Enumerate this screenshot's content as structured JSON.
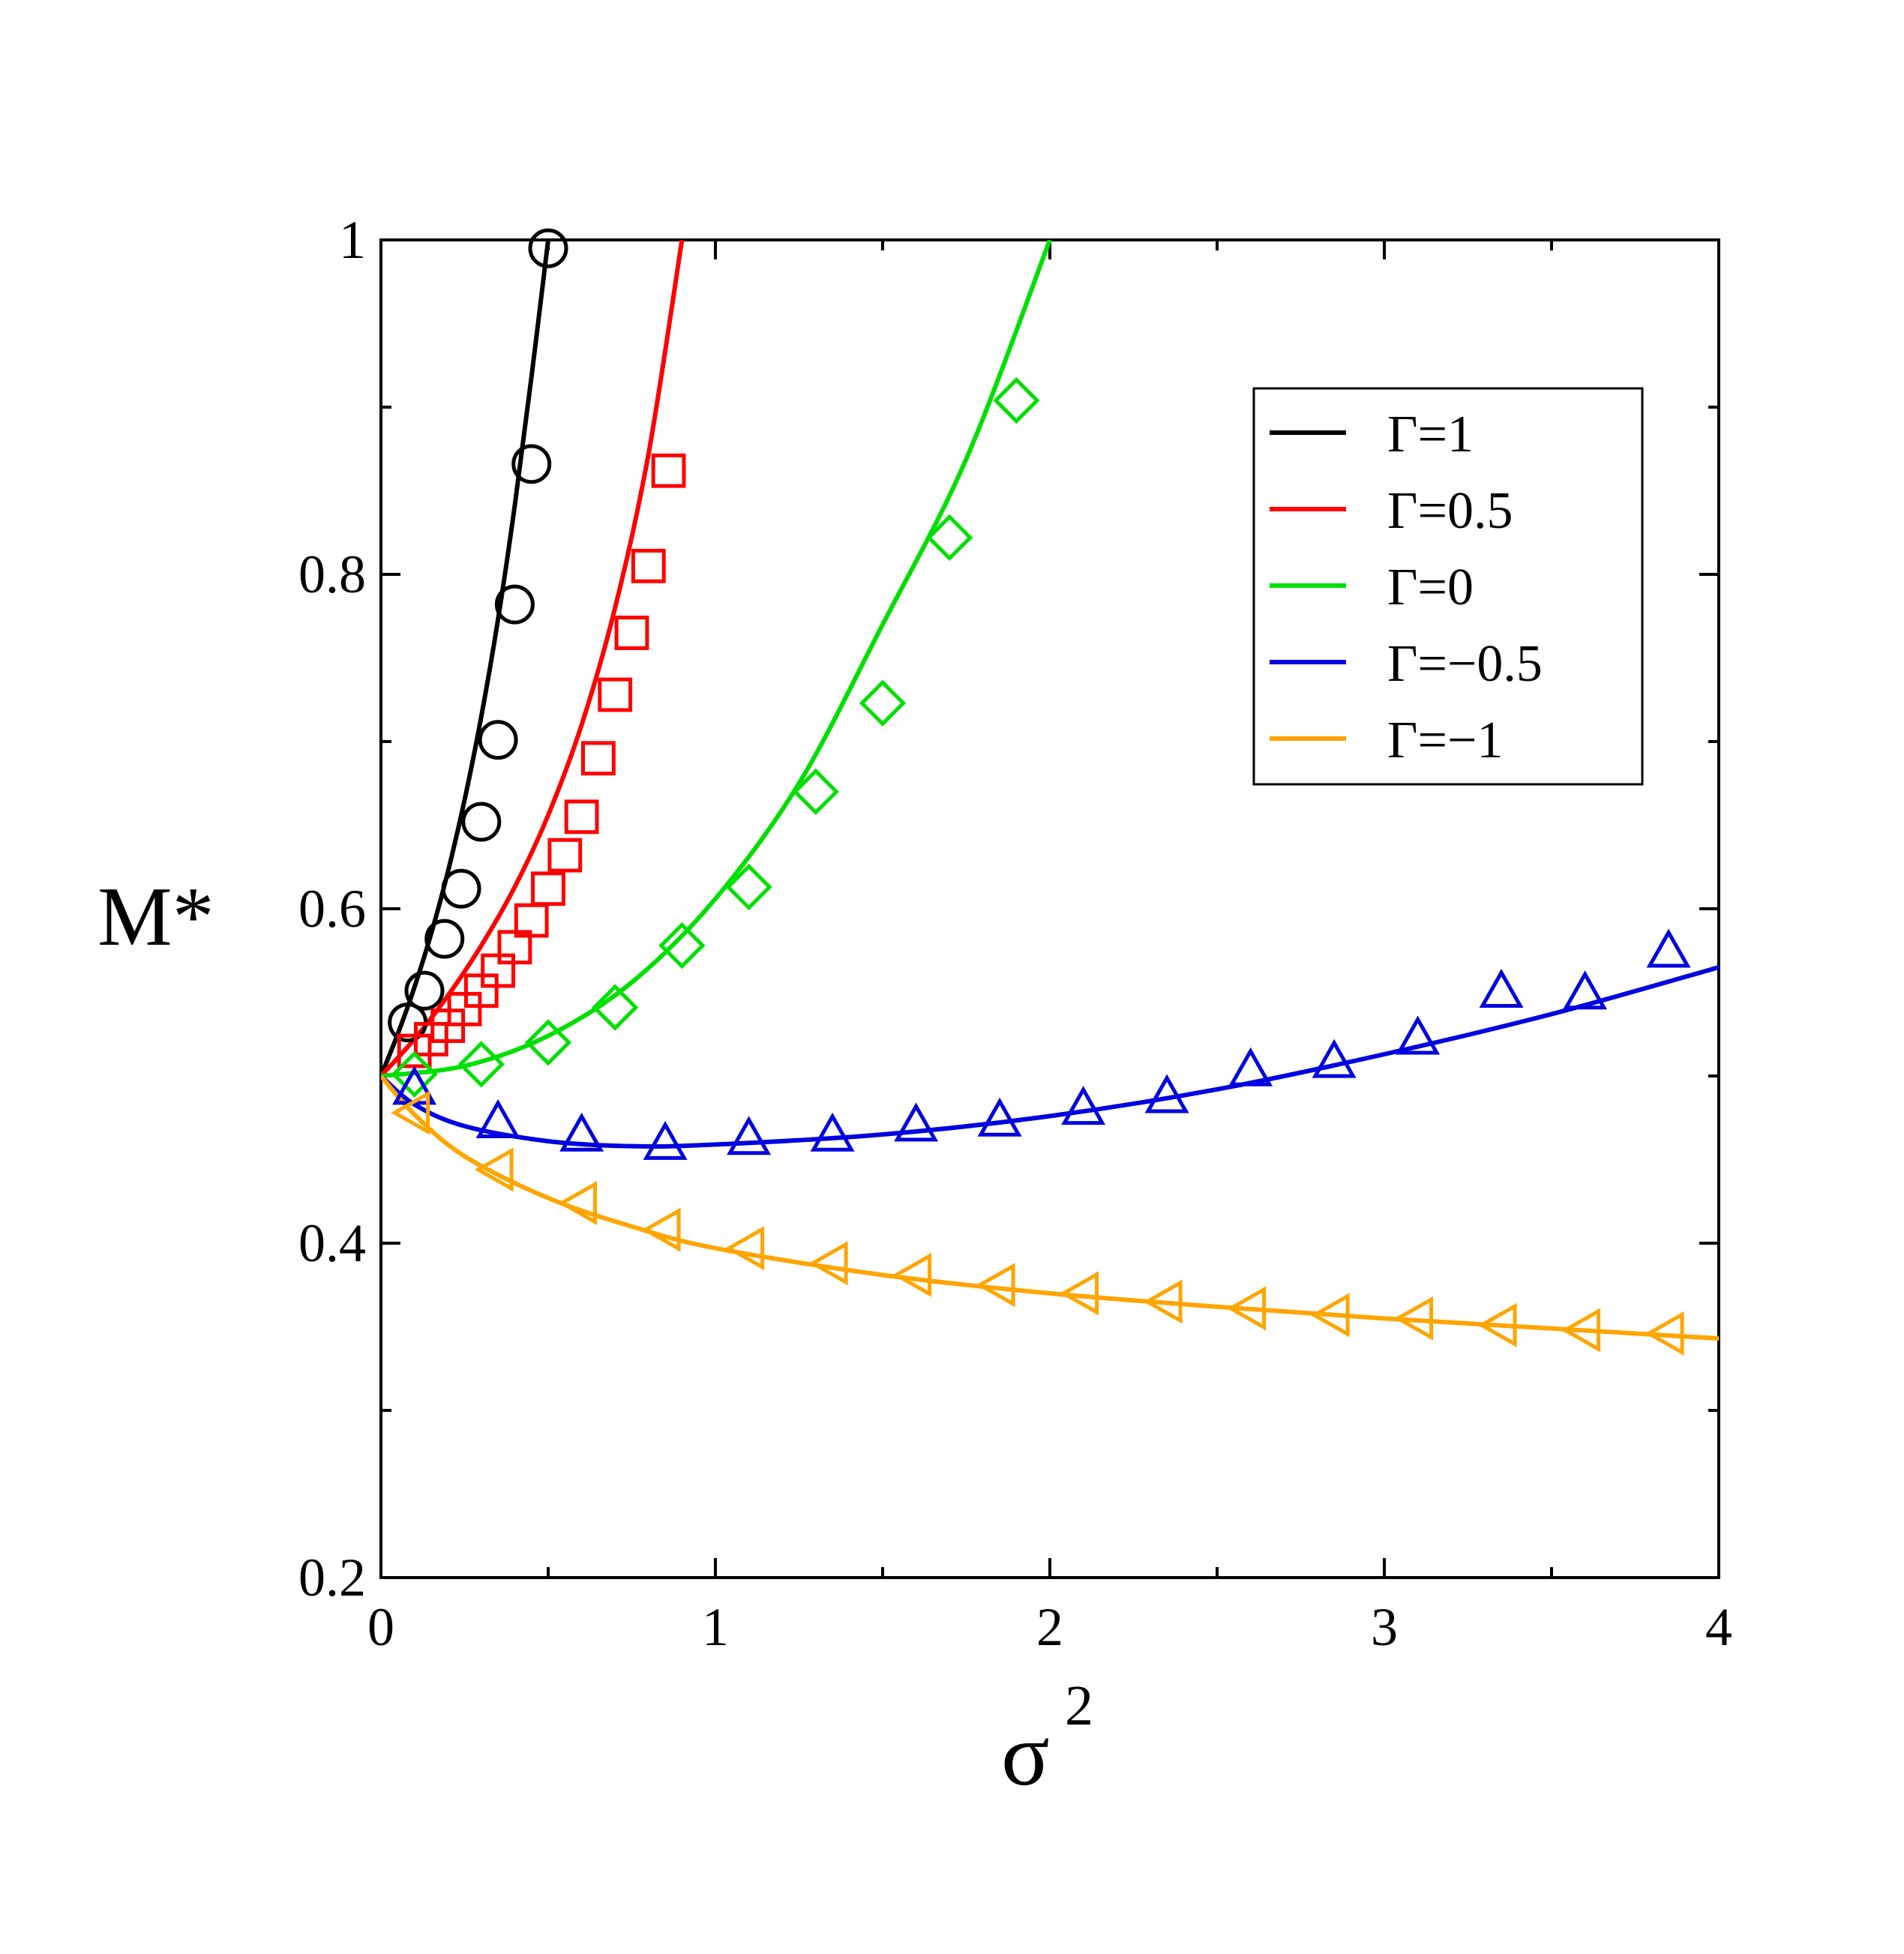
{
  "chart_data": {
    "type": "line",
    "title": "",
    "xlabel": "σ",
    "xlabel_superscript": "2",
    "ylabel": "M*",
    "xlim": [
      0,
      4
    ],
    "ylim": [
      0.2,
      1.0
    ],
    "x_ticks": [
      0,
      1,
      2,
      3,
      4
    ],
    "x_tick_labels": [
      "0",
      "1",
      "2",
      "3",
      "4"
    ],
    "x_minor_ticks": [
      0.5,
      1.5,
      2.5,
      3.5
    ],
    "y_ticks": [
      0.2,
      0.4,
      0.6,
      0.8,
      1.0
    ],
    "y_tick_labels": [
      "0.2",
      "0.4",
      "0.6",
      "0.8",
      "1"
    ],
    "y_minor_ticks": [
      0.3,
      0.5,
      0.7,
      0.9
    ],
    "grid": false,
    "legend_position": "top-right",
    "series": [
      {
        "name": "Γ=1",
        "color": "#000000",
        "marker": "circle",
        "curve_x": [
          0,
          0.05,
          0.1,
          0.15,
          0.2,
          0.25,
          0.3,
          0.35,
          0.4,
          0.45,
          0.5
        ],
        "curve_y": [
          0.5,
          0.525,
          0.553,
          0.585,
          0.622,
          0.665,
          0.715,
          0.773,
          0.841,
          0.918,
          1.0
        ],
        "points_x": [
          0.08,
          0.13,
          0.19,
          0.24,
          0.3,
          0.35,
          0.4,
          0.45,
          0.5
        ],
        "points_y": [
          0.532,
          0.551,
          0.582,
          0.612,
          0.652,
          0.701,
          0.782,
          0.866,
          0.995
        ]
      },
      {
        "name": "Γ=0.5",
        "color": "#ff0000",
        "marker": "square",
        "curve_x": [
          0,
          0.1,
          0.2,
          0.3,
          0.4,
          0.5,
          0.6,
          0.7,
          0.8,
          0.9
        ],
        "curve_y": [
          0.5,
          0.522,
          0.548,
          0.578,
          0.613,
          0.656,
          0.71,
          0.78,
          0.872,
          1.0
        ],
        "points_x": [
          0.1,
          0.15,
          0.2,
          0.25,
          0.3,
          0.35,
          0.4,
          0.45,
          0.5,
          0.55,
          0.6,
          0.65,
          0.7,
          0.75,
          0.8,
          0.86
        ],
        "points_y": [
          0.515,
          0.522,
          0.53,
          0.54,
          0.551,
          0.563,
          0.577,
          0.593,
          0.612,
          0.632,
          0.655,
          0.69,
          0.728,
          0.765,
          0.805,
          0.862
        ]
      },
      {
        "name": "Γ=0",
        "color": "#00e000",
        "marker": "diamond",
        "curve_x": [
          0,
          0.25,
          0.5,
          0.75,
          1.0,
          1.25,
          1.5,
          1.75,
          2.0
        ],
        "curve_y": [
          0.5,
          0.506,
          0.524,
          0.556,
          0.606,
          0.675,
          0.77,
          0.869,
          1.0
        ],
        "points_x": [
          0.1,
          0.3,
          0.5,
          0.7,
          0.9,
          1.1,
          1.3,
          1.5,
          1.7,
          1.9
        ],
        "points_y": [
          0.501,
          0.507,
          0.52,
          0.541,
          0.578,
          0.613,
          0.67,
          0.723,
          0.822,
          0.904
        ]
      },
      {
        "name": "Γ=−0.5",
        "color": "#0000e0",
        "marker": "triangle-up",
        "curve_x": [
          0,
          0.1,
          0.25,
          0.5,
          0.75,
          1.0,
          1.5,
          2.0,
          2.5,
          3.0,
          3.5,
          4.0
        ],
        "curve_y": [
          0.5,
          0.483,
          0.47,
          0.461,
          0.458,
          0.459,
          0.465,
          0.476,
          0.492,
          0.513,
          0.537,
          0.565
        ],
        "points_x": [
          0.1,
          0.35,
          0.6,
          0.85,
          1.1,
          1.35,
          1.6,
          1.85,
          2.1,
          2.35,
          2.6,
          2.85,
          3.1,
          3.35,
          3.6,
          3.85
        ],
        "points_y": [
          0.492,
          0.472,
          0.464,
          0.459,
          0.462,
          0.464,
          0.47,
          0.473,
          0.48,
          0.487,
          0.503,
          0.508,
          0.522,
          0.55,
          0.549,
          0.574
        ]
      },
      {
        "name": "Γ=−1",
        "color": "#ffa500",
        "marker": "triangle-left",
        "curve_x": [
          0,
          0.1,
          0.25,
          0.5,
          0.75,
          1.0,
          1.5,
          2.0,
          2.5,
          3.0,
          3.5,
          4.0
        ],
        "curve_y": [
          0.5,
          0.477,
          0.452,
          0.427,
          0.41,
          0.397,
          0.381,
          0.37,
          0.362,
          0.355,
          0.349,
          0.343
        ],
        "points_x": [
          0.1,
          0.35,
          0.6,
          0.85,
          1.1,
          1.35,
          1.6,
          1.85,
          2.1,
          2.35,
          2.6,
          2.85,
          3.1,
          3.35,
          3.6,
          3.85
        ],
        "points_y": [
          0.478,
          0.444,
          0.424,
          0.408,
          0.397,
          0.388,
          0.381,
          0.375,
          0.37,
          0.365,
          0.361,
          0.357,
          0.355,
          0.351,
          0.348,
          0.346
        ]
      }
    ]
  }
}
